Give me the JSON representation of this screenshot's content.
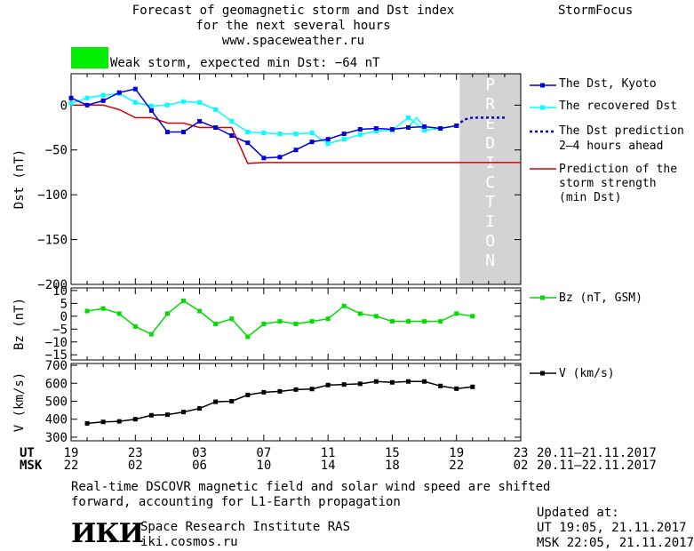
{
  "header": {
    "title_lines": [
      "Forecast of geomagnetic storm and Dst index",
      "for the next several hours",
      "www.spaceweather.ru"
    ],
    "brand": "StormFocus",
    "storm_label": "Weak storm, expected min Dst: −64 nT",
    "storm_color": "#00ee00"
  },
  "prediction_band_text": "PREDICTION",
  "colors": {
    "dst_kyoto": "#0000dd",
    "dst_recovered": "#00ffff",
    "dst_prediction": "#0000dd",
    "storm_strength": "#dd0000",
    "bz": "#00dd00",
    "v": "#000000",
    "prediction_band": "#d3d3d3"
  },
  "legend": {
    "dst_kyoto": "The Dst, Kyoto",
    "dst_recovered": "The recovered Dst",
    "dst_prediction": [
      "The Dst prediction",
      "2–4 hours ahead"
    ],
    "storm_strength": [
      "Prediction of the",
      "storm strength",
      "(min Dst)"
    ],
    "bz": "Bz (nT, GSM)",
    "v": "V (km/s)"
  },
  "time_axis": {
    "ut_label": "UT",
    "msk_label": "MSK",
    "ut_ticks": [
      "19",
      "23",
      "03",
      "07",
      "11",
      "15",
      "19",
      "23"
    ],
    "msk_ticks": [
      "22",
      "02",
      "06",
      "10",
      "14",
      "18",
      "22",
      "02"
    ],
    "ut_range": "20.11–21.11.2017",
    "msk_range": "20.11–22.11.2017"
  },
  "chart_data": [
    {
      "type": "line",
      "ylabel": "Dst (nT)",
      "ylim": [
        -200,
        35
      ],
      "y_ticks": [
        0,
        -50,
        -100,
        -150,
        -200
      ],
      "y_tick_labels": [
        "0",
        "−50",
        "−100",
        "−150",
        "−200"
      ],
      "xlim": [
        19,
        47
      ],
      "prediction_band": [
        43.2,
        47
      ],
      "series": [
        {
          "name": "The Dst, Kyoto",
          "x": [
            19,
            20,
            21,
            22,
            23,
            24,
            25,
            26,
            27,
            28,
            29,
            30,
            31,
            32,
            33,
            34,
            35,
            36,
            37,
            38,
            39,
            40,
            41,
            42,
            43
          ],
          "y": [
            8,
            0,
            5,
            14,
            18,
            -6,
            -30,
            -30,
            -18,
            -25,
            -34,
            -42,
            -59,
            -58,
            -50,
            -41,
            -38,
            -32,
            -27,
            -26,
            -27,
            -25,
            -24,
            -26,
            -23
          ]
        },
        {
          "name": "The recovered Dst",
          "x": [
            19,
            20,
            21,
            22,
            23,
            24,
            25,
            26,
            27,
            28,
            29,
            30,
            31,
            32,
            33,
            34,
            35,
            36,
            37,
            38,
            39,
            40,
            41,
            42,
            43
          ],
          "y": [
            2,
            8,
            11,
            13,
            3,
            -1,
            0,
            4,
            3,
            -5,
            -18,
            -30,
            -31,
            -32,
            -32,
            -31,
            -43,
            -38,
            -33,
            -29,
            -28,
            -14,
            -28,
            -26,
            -23
          ],
          "cont_x": [
            40,
            40.5,
            41
          ],
          "cont_y": [
            -25,
            -14,
            -24
          ]
        },
        {
          "name": "The Dst prediction",
          "x": [
            43,
            43.5,
            44,
            45,
            46
          ],
          "y": [
            -23,
            -16,
            -14,
            -14,
            -14
          ]
        },
        {
          "name": "Prediction of the storm strength",
          "x": [
            19,
            21,
            22,
            23,
            24,
            25,
            26,
            27,
            28,
            29,
            30,
            31,
            47
          ],
          "y": [
            0,
            0,
            -5,
            -14,
            -14,
            -20,
            -20,
            -25,
            -25,
            -25,
            -65,
            -64,
            -64
          ]
        }
      ]
    },
    {
      "type": "line",
      "ylabel": "Bz (nT)",
      "ylim": [
        -17,
        11
      ],
      "y_ticks": [
        10,
        5,
        0,
        -5,
        -10,
        -15
      ],
      "y_tick_labels": [
        "10",
        "5",
        "0",
        "−5",
        "−10",
        "−15"
      ],
      "xlim": [
        19,
        47
      ],
      "series": [
        {
          "name": "Bz (nT, GSM)",
          "x": [
            20,
            21,
            22,
            23,
            24,
            25,
            26,
            27,
            28,
            29,
            30,
            31,
            32,
            33,
            34,
            35,
            36,
            37,
            38,
            39,
            40,
            41,
            42,
            43,
            44
          ],
          "y": [
            2,
            3,
            1,
            -4,
            -7,
            1,
            6,
            2,
            -3,
            -1,
            -8,
            -3,
            -2,
            -3,
            -2,
            -1,
            4,
            1,
            0,
            -2,
            -2,
            -2,
            -2,
            1,
            0
          ]
        }
      ]
    },
    {
      "type": "line",
      "ylabel": "V (km/s)",
      "ylim": [
        280,
        710
      ],
      "y_ticks": [
        700,
        600,
        500,
        400,
        300
      ],
      "y_tick_labels": [
        "700",
        "600",
        "500",
        "400",
        "300"
      ],
      "xlim": [
        19,
        47
      ],
      "series": [
        {
          "name": "V (km/s)",
          "x": [
            20,
            21,
            22,
            23,
            24,
            25,
            26,
            27,
            28,
            29,
            30,
            31,
            32,
            33,
            34,
            35,
            36,
            37,
            38,
            39,
            40,
            41,
            42,
            43,
            44
          ],
          "y": [
            377,
            385,
            388,
            400,
            422,
            425,
            440,
            460,
            497,
            500,
            535,
            550,
            555,
            565,
            568,
            590,
            593,
            597,
            610,
            605,
            610,
            610,
            585,
            570,
            580
          ]
        }
      ]
    }
  ],
  "footer": {
    "note_lines": [
      "Real-time DSCOVR magnetic field and solar wind speed are shifted",
      "forward, accounting for L1-Earth propagation"
    ],
    "logo_text": "ИКИ",
    "institute": "Space Research Institute RAS",
    "site": "iki.cosmos.ru",
    "updated_label": "Updated at:",
    "updated_ut": "UT  19:05, 21.11.2017",
    "updated_msk": "MSK 22:05, 21.11.2017"
  }
}
